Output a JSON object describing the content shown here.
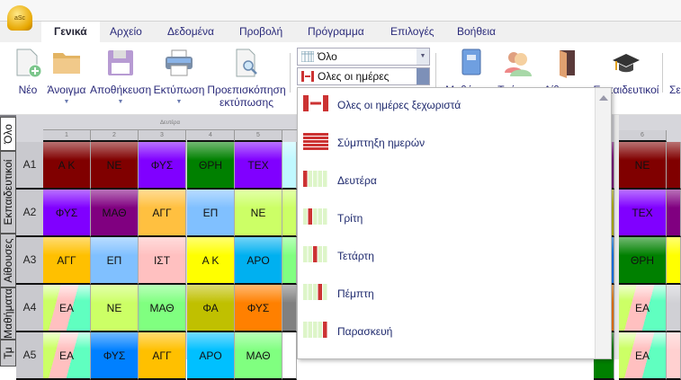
{
  "app": {
    "logo_text": "aSc"
  },
  "tabs": [
    {
      "label": "Γενικά",
      "active": true
    },
    {
      "label": "Αρχείο"
    },
    {
      "label": "Δεδομένα"
    },
    {
      "label": "Προβολή"
    },
    {
      "label": "Πρόγραμμα"
    },
    {
      "label": "Επιλογές"
    },
    {
      "label": "Βοήθεια"
    }
  ],
  "ribbon": {
    "new": "Νέο",
    "open": "Άνοιγμα",
    "save": "Αποθήκευση",
    "print": "Εκτύπωση",
    "preview_1": "Προεπισκόπηση",
    "preview_2": "εκτύπωσης",
    "view_combo": "Όλο",
    "days_combo": "Ολες οι ημέρες ξεχωριστά",
    "subjects": "Μαθήματα",
    "classes": "Τμήματα",
    "rooms": "Αίθουσες",
    "teachers": "Εκπαιδευτικοί",
    "cut_label": "Σε"
  },
  "side_tabs": [
    "Όλο",
    "Εκπαιδευτικοί",
    "Αίθουσες",
    "Μαθήματα",
    "Τμ"
  ],
  "grid": {
    "day": "Δευτέρα",
    "periods": [
      "1",
      "2",
      "3",
      "4",
      "5"
    ],
    "period_right": "6",
    "rows": [
      {
        "label": "Α1",
        "cells": [
          {
            "t": "Α Κ",
            "c": "#800000"
          },
          {
            "t": "ΝΕ",
            "c": "#800000"
          },
          {
            "t": "ΦΥΣ",
            "c": "#8000ff"
          },
          {
            "t": "ΘΡΗ",
            "c": "#008000"
          },
          {
            "t": "ΤΕΧ",
            "c": "#8000ff"
          }
        ],
        "next": "#c0f8ff",
        "prev6": "#800080",
        "c6": {
          "t": "ΝΕ",
          "c": "#800000"
        },
        "c7": "#800000"
      },
      {
        "label": "Α2",
        "cells": [
          {
            "t": "ΦΥΣ",
            "c": "#8000ff"
          },
          {
            "t": "ΜΑΘ",
            "c": "#800080"
          },
          {
            "t": "ΑΓΓ",
            "c": "#ffc040"
          },
          {
            "t": "ΕΠ",
            "c": "#80c0ff"
          },
          {
            "t": "ΝΕ",
            "c": "#ccff66"
          }
        ],
        "next": "#ccff66",
        "prev6": "#c0c000",
        "c6": {
          "t": "ΤΕΧ",
          "c": "#8000ff"
        },
        "c7": "#800080"
      },
      {
        "label": "Α3",
        "cells": [
          {
            "t": "ΑΓΓ",
            "c": "#ffc000"
          },
          {
            "t": "ΕΠ",
            "c": "#80c0ff"
          },
          {
            "t": "ΙΣΤ",
            "c": "#ffc0c0"
          },
          {
            "t": "Α Κ",
            "c": "#ffff00"
          },
          {
            "t": "ΑΡΟ",
            "c": "#00b0f0"
          }
        ],
        "next": "#80ff80",
        "prev6": "#0080ff",
        "c6": {
          "t": "ΘΡΗ",
          "c": "#008000"
        },
        "c7": "#ffff00"
      },
      {
        "label": "Α4",
        "cells": [
          {
            "t": "ΕΑ",
            "c": "striped"
          },
          {
            "t": "ΝΕ",
            "c": "#ccff66"
          },
          {
            "t": "ΜΑΘ",
            "c": "#80ff80"
          },
          {
            "t": "ΦΑ",
            "c": "#c0c000"
          },
          {
            "t": "ΦΥΣ",
            "c": "#ff8000"
          }
        ],
        "next": "#808080",
        "prev6": "#ff8000",
        "c6": {
          "t": "ΕΑ",
          "c": "striped"
        },
        "c7": "#d0d0d5"
      },
      {
        "label": "Α5",
        "cells": [
          {
            "t": "ΕΑ",
            "c": "striped"
          },
          {
            "t": "ΦΥΣ",
            "c": "#0080ff"
          },
          {
            "t": "ΑΓΓ",
            "c": "#ffc000"
          },
          {
            "t": "ΑΡΟ",
            "c": "#00c0ff"
          },
          {
            "t": "ΜΑΘ",
            "c": "#80ff80"
          }
        ],
        "next": "#ffffff",
        "prev6": "#008000",
        "c6": {
          "t": "ΕΑ",
          "c": "striped"
        },
        "c7": "#ffd0d0"
      }
    ]
  },
  "dropdown": {
    "items": [
      "Ολες οι ημέρες ξεχωριστά",
      "Σύμπτηξη ημερών",
      "Δευτέρα",
      "Τρίτη",
      "Τετάρτη",
      "Πέμπτη",
      "Παρασκευή"
    ]
  }
}
